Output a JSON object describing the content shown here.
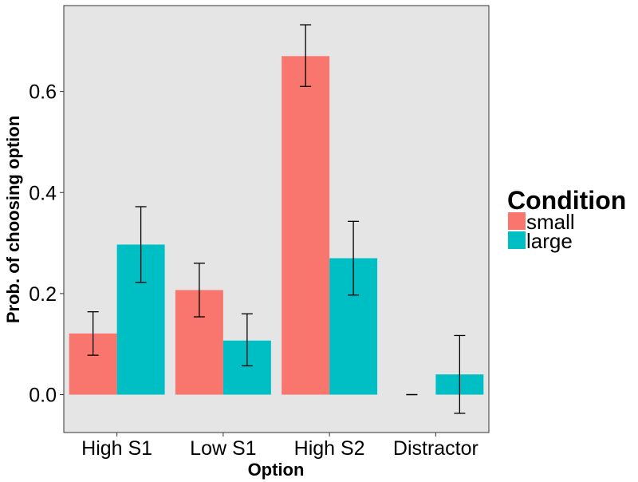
{
  "chart_data": {
    "type": "bar",
    "xlabel": "Option",
    "ylabel": "Prob. of choosing option",
    "categories": [
      "High S1",
      "Low S1",
      "High S2",
      "Distractor"
    ],
    "ylim": [
      -0.075,
      0.77
    ],
    "yticks": [
      0.0,
      0.2,
      0.4,
      0.6
    ],
    "ytick_labels": [
      "0.0",
      "0.2",
      "0.4",
      "0.6"
    ],
    "grid": false,
    "legend": {
      "title": "Condition",
      "position": "right"
    },
    "series": [
      {
        "name": "small",
        "color": "#F8766D",
        "values": [
          0.121,
          0.207,
          0.67,
          0.0
        ],
        "err_low": [
          0.078,
          0.154,
          0.61,
          0.0
        ],
        "err_high": [
          0.164,
          0.26,
          0.732,
          0.0
        ]
      },
      {
        "name": "large",
        "color": "#00BFC4",
        "values": [
          0.297,
          0.107,
          0.27,
          0.04
        ],
        "err_low": [
          0.222,
          0.057,
          0.197,
          -0.037
        ],
        "err_high": [
          0.372,
          0.16,
          0.343,
          0.117
        ]
      }
    ],
    "panel_color": "#E5E5E5"
  }
}
